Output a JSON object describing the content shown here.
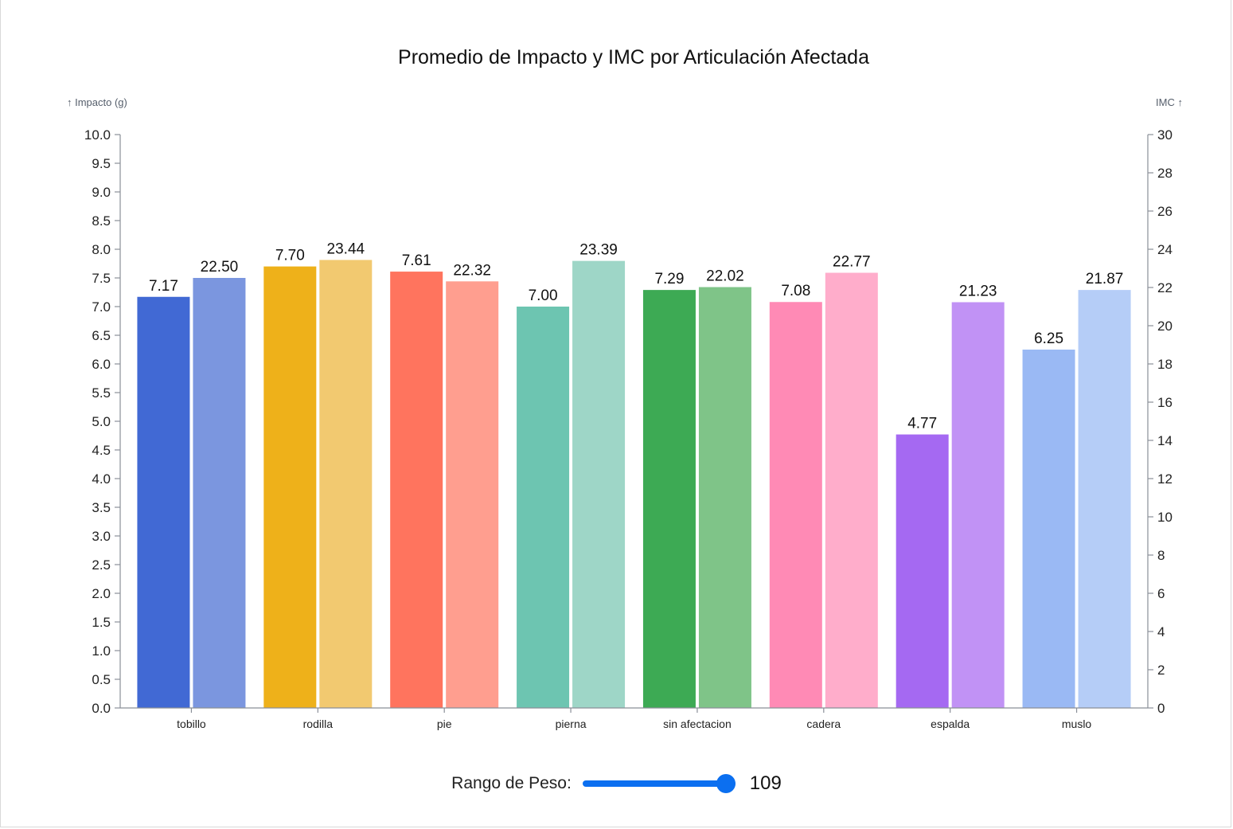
{
  "chart_data": {
    "type": "bar",
    "title": "Promedio de Impacto y IMC por Articulación Afectada",
    "ylabel_left": "↑ Impacto (g)",
    "ylabel_right": "IMC ↑",
    "ylim_left": [
      0,
      10
    ],
    "ylim_right": [
      0,
      30
    ],
    "yticks_left": [
      "0.0",
      "0.5",
      "1.0",
      "1.5",
      "2.0",
      "2.5",
      "3.0",
      "3.5",
      "4.0",
      "4.5",
      "5.0",
      "5.5",
      "6.0",
      "6.5",
      "7.0",
      "7.5",
      "8.0",
      "8.5",
      "9.0",
      "9.5",
      "10.0"
    ],
    "yticks_right": [
      "0",
      "2",
      "4",
      "6",
      "8",
      "10",
      "12",
      "14",
      "16",
      "18",
      "20",
      "22",
      "24",
      "26",
      "28",
      "30"
    ],
    "categories": [
      "tobillo",
      "rodilla",
      "pie",
      "pierna",
      "sin afectacion",
      "cadera",
      "espalda",
      "muslo"
    ],
    "series": [
      {
        "axis": "left",
        "values": [
          7.17,
          7.7,
          7.61,
          7.0,
          7.29,
          7.08,
          4.77,
          6.25
        ],
        "labels": [
          "7.17",
          "7.70",
          "7.61",
          "7.00",
          "7.29",
          "7.08",
          "4.77",
          "6.25"
        ],
        "colors": [
          "#4169d4",
          "#eeb11a",
          "#ff745e",
          "#6dc5b1",
          "#3daa54",
          "#ff8ab5",
          "#a569f2",
          "#9ab9f4"
        ]
      },
      {
        "axis": "right",
        "values": [
          22.5,
          23.44,
          22.32,
          23.39,
          22.02,
          22.77,
          21.23,
          21.87
        ],
        "labels": [
          "22.50",
          "23.44",
          "22.32",
          "23.39",
          "22.02",
          "22.77",
          "21.23",
          "21.87"
        ],
        "colors": [
          "#7b96df",
          "#f2c970",
          "#ff9e8f",
          "#9ed6c7",
          "#7fc488",
          "#ffadcb",
          "#c192f5",
          "#b5cdf7"
        ]
      }
    ]
  },
  "controls": {
    "slider_label": "Rango de Peso:",
    "slider_value": "109",
    "slider_fraction": 1.0
  }
}
